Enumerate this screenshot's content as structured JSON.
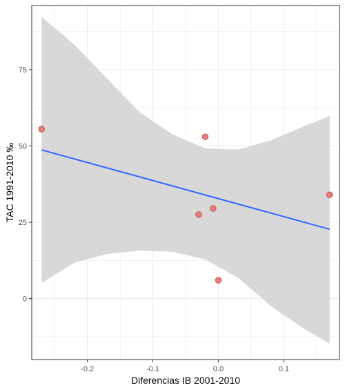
{
  "chart_data": {
    "type": "scatter",
    "xlabel": "Diferencias IB 2001-2010",
    "ylabel": "TAC 1991-2010 ‰",
    "xlim": [
      -0.285,
      0.185
    ],
    "ylim": [
      -20,
      96
    ],
    "x_ticks": [
      -0.2,
      -0.1,
      0.0,
      0.1
    ],
    "x_tick_labels": [
      "-0.2",
      "-0.1",
      "0.0",
      "0.1"
    ],
    "y_ticks": [
      0,
      25,
      50,
      75
    ],
    "y_tick_labels": [
      "0",
      "25",
      "50",
      "75"
    ],
    "x_minor_ticks": [
      -0.25,
      -0.15,
      -0.05,
      0.05,
      0.15
    ],
    "y_minor_ticks": [
      -12.5,
      12.5,
      37.5,
      62.5,
      87.5
    ],
    "grid": true,
    "points": [
      {
        "x": -0.27,
        "y": 55.5
      },
      {
        "x": -0.02,
        "y": 53
      },
      {
        "x": -0.008,
        "y": 29.5
      },
      {
        "x": -0.03,
        "y": 27.5
      },
      {
        "x": 0.0,
        "y": 6
      },
      {
        "x": 0.17,
        "y": 34
      }
    ],
    "regression_line": {
      "x": [
        -0.27,
        0.17
      ],
      "y": [
        48.7,
        22.7
      ]
    },
    "confidence_band": {
      "x": [
        -0.27,
        -0.22,
        -0.17,
        -0.12,
        -0.07,
        -0.02,
        0.03,
        0.08,
        0.13,
        0.17
      ],
      "upper": [
        92.3,
        83.2,
        72.1,
        61.0,
        53.8,
        49.2,
        48.8,
        51.8,
        56.4,
        59.8
      ],
      "lower": [
        5.1,
        11.7,
        14.6,
        15.7,
        15.3,
        12.8,
        6.8,
        -2.4,
        -9.8,
        -14.8
      ]
    },
    "colors": {
      "point_fill": "#e8807a",
      "point_stroke": "#c0504d",
      "line": "#3366ff",
      "band": "#d6d6d6",
      "grid": "#ebebeb",
      "panel_border": "#333333"
    }
  }
}
